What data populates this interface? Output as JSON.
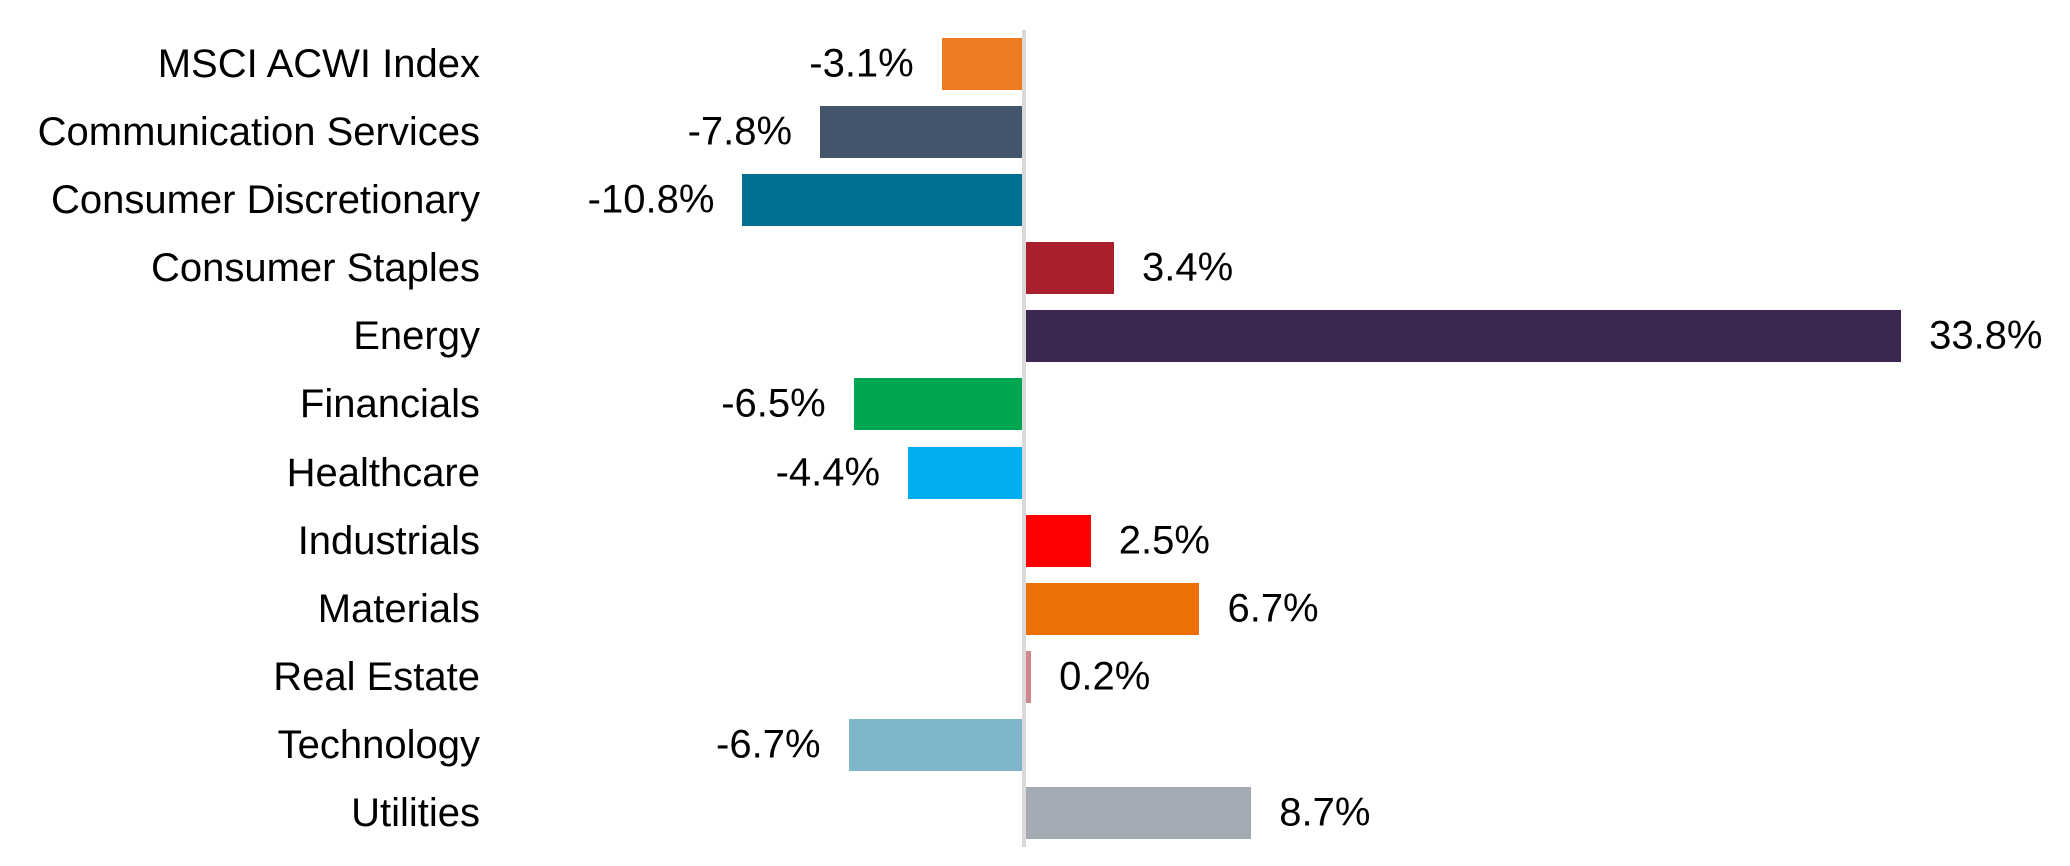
{
  "chart_data": {
    "type": "bar",
    "orientation": "horizontal",
    "title": "",
    "xlabel": "",
    "ylabel": "",
    "grid": false,
    "legend": false,
    "xlim": [
      -21,
      40.4
    ],
    "axis_line_color": "#D9D9D9",
    "text_color": "#000000",
    "background": "#FFFFFF",
    "categories": [
      "MSCI ACWI Index",
      "Communication Services",
      "Consumer Discretionary",
      "Consumer Staples",
      "Energy",
      "Financials",
      "Healthcare",
      "Industrials",
      "Materials",
      "Real Estate",
      "Technology",
      "Utilities"
    ],
    "values": [
      -3.1,
      -7.8,
      -10.8,
      3.4,
      33.8,
      -6.5,
      -4.4,
      2.5,
      6.7,
      0.2,
      -6.7,
      8.7
    ],
    "value_labels": [
      "-3.1%",
      "-7.8%",
      "-10.8%",
      "3.4%",
      "33.8%",
      "-6.5%",
      "-4.4%",
      "2.5%",
      "6.7%",
      "0.2%",
      "-6.7%",
      "8.7%"
    ],
    "colors": [
      "#ED7B22",
      "#44546A",
      "#006F94",
      "#AA1E2D",
      "#3C2652",
      "#00A651",
      "#00AEEF",
      "#FE0000",
      "#ED7006",
      "#D0888E",
      "#7FB6C9",
      "#A3AAB4"
    ]
  }
}
